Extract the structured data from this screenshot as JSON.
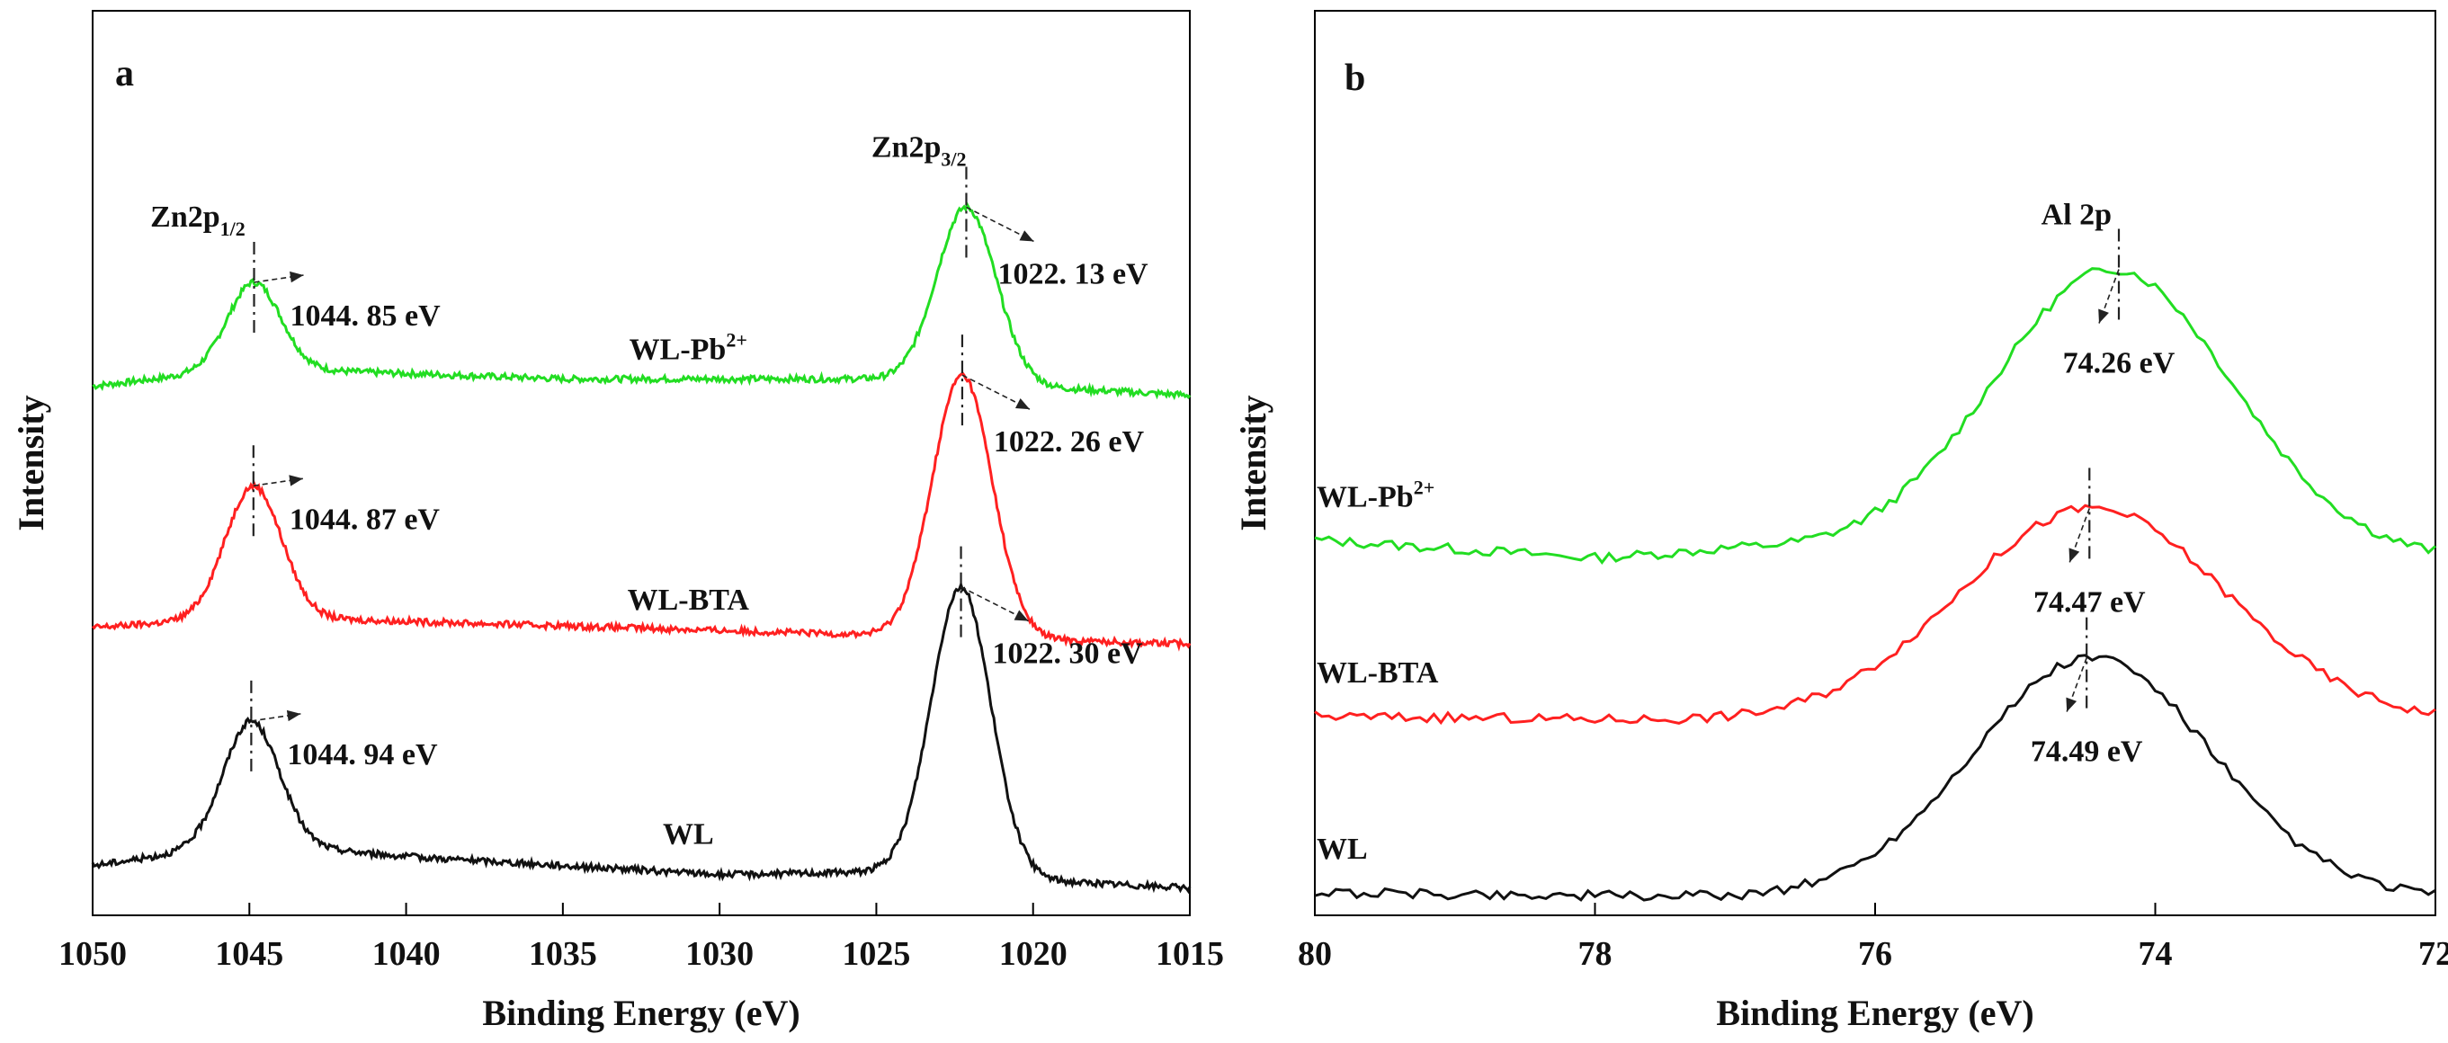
{
  "chart_data": [
    {
      "panel": "a",
      "type": "line",
      "title": "",
      "xlabel": "Binding Energy (eV)",
      "ylabel": "Intensity",
      "xlim": [
        1050,
        1015
      ],
      "x_reversed": true,
      "xticks": [
        1050,
        1045,
        1040,
        1035,
        1030,
        1025,
        1020,
        1015
      ],
      "yticks": [],
      "grid": false,
      "peak_labels": [
        {
          "base": "Zn2p",
          "sub": "1/2",
          "x": 1044.9
        },
        {
          "base": "Zn2p",
          "sub": "3/2",
          "x": 1021.9
        }
      ],
      "series": [
        {
          "name": "WL-Pb2+",
          "label_base": "WL-Pb",
          "label_sup": "2+",
          "color": "#22dd22",
          "offset": 0.575,
          "baseline": [
            [
              1050,
              0.01
            ],
            [
              1045,
              0.03
            ],
            [
              1035,
              0.018
            ],
            [
              1025,
              0.018
            ],
            [
              1015,
              0.0
            ]
          ],
          "peaks": [
            {
              "center": 1044.85,
              "height": 0.095,
              "width": 0.85
            },
            {
              "center": 1022.13,
              "height": 0.195,
              "width": 0.95
            }
          ],
          "annotations": [
            {
              "x": 1044.85,
              "text": "1044. 85 eV"
            },
            {
              "x": 1022.13,
              "text": "1022. 13 eV"
            }
          ]
        },
        {
          "name": "WL-BTA",
          "label_base": "WL-BTA",
          "label_sup": "",
          "color": "#ff2020",
          "offset": 0.3,
          "baseline": [
            [
              1050,
              0.018
            ],
            [
              1045,
              0.03
            ],
            [
              1035,
              0.02
            ],
            [
              1025,
              0.01
            ],
            [
              1015,
              0.0
            ]
          ],
          "peaks": [
            {
              "center": 1044.87,
              "height": 0.145,
              "width": 0.9
            },
            {
              "center": 1022.26,
              "height": 0.29,
              "width": 0.95
            }
          ],
          "annotations": [
            {
              "x": 1044.87,
              "text": "1044. 87 eV"
            },
            {
              "x": 1022.26,
              "text": "1022. 26 eV"
            }
          ]
        },
        {
          "name": "WL",
          "label_base": "WL",
          "label_sup": "",
          "color": "#111111",
          "offset": 0.03,
          "baseline": [
            [
              1050,
              0.025
            ],
            [
              1045,
              0.05
            ],
            [
              1040,
              0.035
            ],
            [
              1030,
              0.015
            ],
            [
              1025,
              0.018
            ],
            [
              1015,
              0.0
            ]
          ],
          "peaks": [
            {
              "center": 1044.94,
              "height": 0.135,
              "width": 0.9
            },
            {
              "center": 1022.3,
              "height": 0.32,
              "width": 0.95
            }
          ],
          "annotations": [
            {
              "x": 1044.94,
              "text": "1044. 94 eV"
            },
            {
              "x": 1022.3,
              "text": "1022. 30 eV"
            }
          ]
        }
      ]
    },
    {
      "panel": "b",
      "type": "line",
      "title": "",
      "xlabel": "Binding Energy (eV)",
      "ylabel": "Intensity",
      "xlim": [
        80,
        72
      ],
      "x_reversed": true,
      "xticks": [
        80,
        78,
        76,
        74,
        72
      ],
      "yticks": [],
      "grid": false,
      "peak_labels": [
        {
          "base": "Al 2p",
          "sub": "",
          "x": 74.26
        }
      ],
      "series": [
        {
          "name": "WL-Pb2+",
          "label_base": "WL-Pb",
          "label_sup": "2+",
          "color": "#22dd22",
          "offset": 0.395,
          "baseline": [
            [
              80,
              0.02
            ],
            [
              78,
              0.0
            ],
            [
              77,
              0.01
            ],
            [
              72,
              0.0
            ]
          ],
          "peaks": [
            {
              "center": 74.3,
              "height": 0.315,
              "width": 0.85
            }
          ],
          "annotations": [
            {
              "x": 74.26,
              "text": "74.26 eV"
            }
          ]
        },
        {
          "name": "WL-BTA",
          "label_base": "WL-BTA",
          "label_sup": "",
          "color": "#ff2020",
          "offset": 0.215,
          "baseline": [
            [
              80,
              0.005
            ],
            [
              77,
              0.0
            ],
            [
              72,
              0.0
            ]
          ],
          "peaks": [
            {
              "center": 74.45,
              "height": 0.235,
              "width": 0.95
            }
          ],
          "annotations": [
            {
              "x": 74.47,
              "text": "74.47 eV"
            }
          ]
        },
        {
          "name": "WL",
          "label_base": "WL",
          "label_sup": "",
          "color": "#111111",
          "offset": 0.02,
          "baseline": [
            [
              80,
              0.005
            ],
            [
              77,
              0.0
            ],
            [
              72,
              0.0
            ]
          ],
          "peaks": [
            {
              "center": 74.45,
              "height": 0.265,
              "width": 0.85
            }
          ],
          "annotations": [
            {
              "x": 74.49,
              "text": "74.49 eV"
            }
          ]
        }
      ]
    }
  ]
}
